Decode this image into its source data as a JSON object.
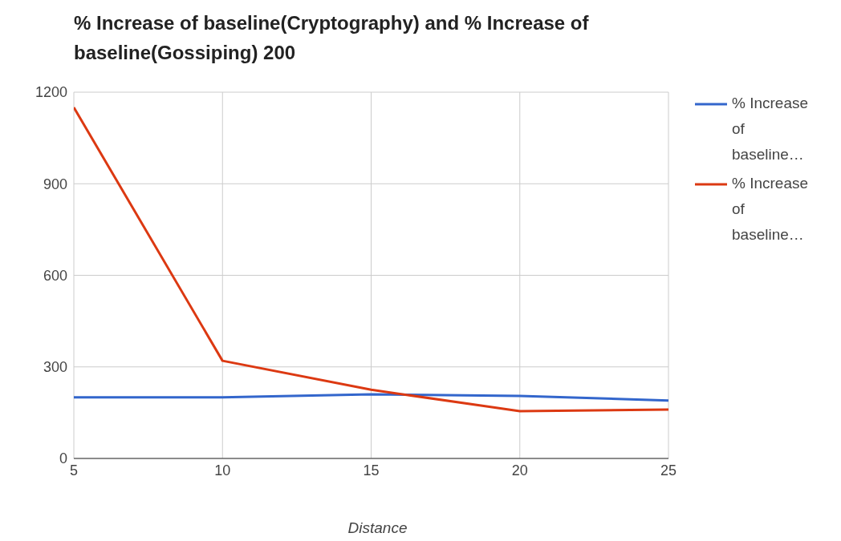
{
  "chart_data": {
    "type": "line",
    "title": "% Increase of baseline(Cryptography) and % Increase of baseline(Gossiping) 200",
    "xlabel": "Distance",
    "x": [
      5,
      10,
      15,
      20,
      25
    ],
    "series": [
      {
        "name": "% Increase of baseline…",
        "color": "#3366cc",
        "values": [
          200,
          200,
          210,
          205,
          190
        ]
      },
      {
        "name": "% Increase of baseline…",
        "color": "#dc3912",
        "values": [
          1150,
          320,
          225,
          155,
          160
        ]
      }
    ],
    "xlim": [
      5,
      25
    ],
    "xticks": [
      5,
      10,
      15,
      20,
      25
    ],
    "ylim": [
      0,
      1200
    ],
    "yticks": [
      0,
      300,
      600,
      900,
      1200
    ],
    "grid": true,
    "legend": "top right",
    "marker": "none",
    "line_style": "solid"
  }
}
